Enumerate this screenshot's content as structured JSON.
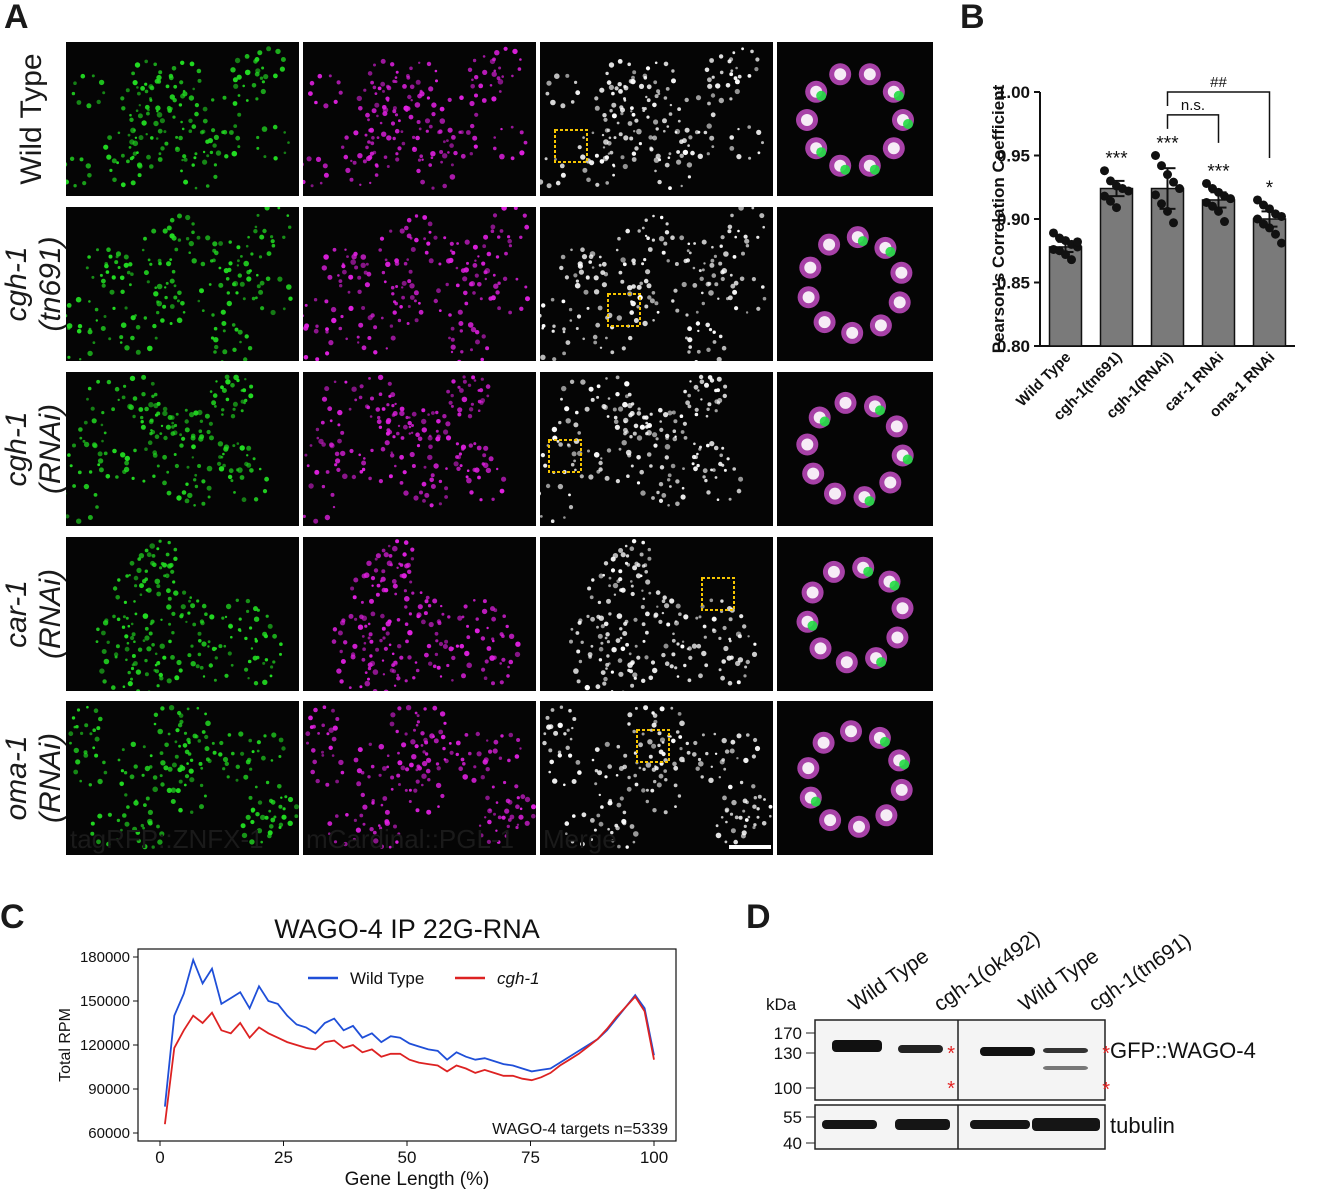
{
  "panel_a": {
    "label": "A",
    "rows": [
      {
        "line1": "Wild Type",
        "line2": "",
        "italic": false
      },
      {
        "line1": "cgh-1",
        "line2": "(tn691)",
        "italic": true
      },
      {
        "line1": "cgh-1",
        "line2": "(RNAi)",
        "italic": true
      },
      {
        "line1": "car-1",
        "line2": "(RNAi)",
        "italic": true
      },
      {
        "line1": "oma-1",
        "line2": "(RNAi)",
        "italic": true
      }
    ],
    "channels": [
      "tagRFP::ZNFX-1",
      "mCardinal::PGL-1",
      "Merge"
    ],
    "channel_colors": [
      "#22dd22",
      "#e020e0",
      "#ffffff"
    ],
    "box_color": "#f5c400"
  },
  "chart_data": [
    {
      "panel": "B",
      "type": "bar",
      "ylabel": "Pearson's Correlation Coefficient",
      "ylim": [
        0.8,
        1.0
      ],
      "yticks": [
        "0.80",
        "0.85",
        "0.90",
        "0.95",
        "1.00"
      ],
      "categories": [
        "Wild Type",
        "cgh-1(tn691)",
        "cgh-1(RNAi)",
        "car-1 RNAi",
        "oma-1 RNAi"
      ],
      "values": [
        0.878,
        0.924,
        0.924,
        0.915,
        0.9
      ],
      "errors": [
        0.004,
        0.006,
        0.016,
        0.006,
        0.006
      ],
      "significance": [
        "",
        "***",
        "***",
        "***",
        "*"
      ],
      "comparisons": [
        {
          "from": "cgh-1(RNAi)",
          "to": "car-1 RNAi",
          "label": "n.s."
        },
        {
          "from": "cgh-1(RNAi)",
          "to": "oma-1 RNAi",
          "label": "##"
        }
      ],
      "points": [
        [
          0.889,
          0.885,
          0.883,
          0.88,
          0.878,
          0.876,
          0.875,
          0.872,
          0.868,
          0.882
        ],
        [
          0.938,
          0.93,
          0.926,
          0.924,
          0.922,
          0.918,
          0.914,
          0.909
        ],
        [
          0.95,
          0.942,
          0.935,
          0.929,
          0.924,
          0.919,
          0.912,
          0.906,
          0.897
        ],
        [
          0.928,
          0.924,
          0.921,
          0.918,
          0.916,
          0.913,
          0.91,
          0.906,
          0.898
        ],
        [
          0.915,
          0.911,
          0.908,
          0.904,
          0.902,
          0.9,
          0.896,
          0.893,
          0.888,
          0.881
        ]
      ],
      "bar_color": "#7a7a7a"
    },
    {
      "panel": "C",
      "type": "line",
      "title": "WAGO-4 IP 22G-RNA",
      "xlabel": "Gene Length (%)",
      "ylabel": "Total RPM",
      "xlim": [
        0,
        100
      ],
      "ylim": [
        60000,
        180000
      ],
      "xticks": [
        "0",
        "25",
        "50",
        "75",
        "100"
      ],
      "yticks": [
        "60000",
        "90000",
        "120000",
        "150000",
        "180000"
      ],
      "annotation": "WAGO-4 targets n=5339",
      "series": [
        {
          "name": "Wild Type",
          "color": "#1f4fd8",
          "values": [
            78000,
            140000,
            155000,
            178000,
            162000,
            172000,
            148000,
            152000,
            156000,
            145000,
            160000,
            150000,
            148000,
            140000,
            134000,
            132000,
            128000,
            135000,
            138000,
            130000,
            133000,
            125000,
            128000,
            122000,
            126000,
            125000,
            121000,
            119000,
            117000,
            116000,
            110000,
            115000,
            112000,
            110000,
            111000,
            109000,
            107000,
            106000,
            104000,
            102000,
            103000,
            104000,
            108000,
            112000,
            116000,
            120000,
            124000,
            130000,
            138000,
            146000,
            154000,
            145000,
            113000
          ]
        },
        {
          "name": "cgh-1",
          "color": "#dd2222",
          "values": [
            66000,
            118000,
            130000,
            140000,
            135000,
            142000,
            130000,
            128000,
            135000,
            125000,
            132000,
            128000,
            125000,
            122000,
            120000,
            118000,
            117000,
            122000,
            123000,
            118000,
            120000,
            115000,
            117000,
            112000,
            114000,
            114000,
            110000,
            108000,
            107000,
            106000,
            102000,
            106000,
            104000,
            101000,
            103000,
            101000,
            99000,
            99000,
            97000,
            96000,
            98000,
            101000,
            106000,
            110000,
            114000,
            119000,
            124000,
            131000,
            139000,
            146000,
            153000,
            143000,
            110000
          ]
        }
      ]
    },
    {
      "panel": "D",
      "type": "blot",
      "ylabel": "kDa",
      "lanes": [
        "Wild Type",
        "cgh-1(ok492)",
        "Wild Type",
        "cgh-1(tn691)"
      ],
      "markers_top": [
        "170",
        "130",
        "100"
      ],
      "markers_bottom": [
        "55",
        "40"
      ],
      "row_labels": [
        "GFP::WAGO-4",
        "tubulin"
      ],
      "star": "*",
      "star_color": "#e32222"
    }
  ],
  "panel_labels": {
    "b": "B",
    "c": "C",
    "d": "D"
  },
  "scale_bar_color": "#ffffff"
}
